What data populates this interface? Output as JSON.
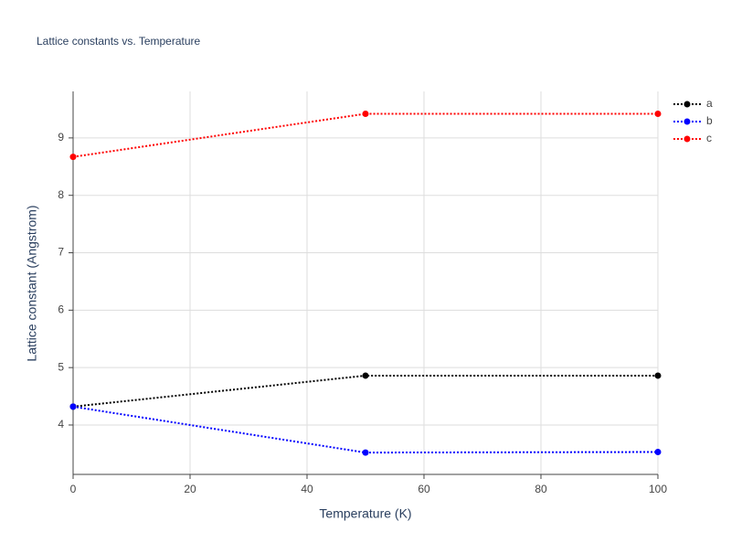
{
  "chart_data": {
    "type": "line",
    "title": "Lattice constants vs. Temperature",
    "x_label": "Temperature (K)",
    "y_label": "Lattice constant (Angstrom)",
    "x": [
      0,
      50,
      100
    ],
    "series": [
      {
        "name": "a",
        "color": "#000000",
        "values": [
          4.32,
          4.86,
          4.86
        ]
      },
      {
        "name": "b",
        "color": "#0000ff",
        "values": [
          4.32,
          3.52,
          3.53
        ]
      },
      {
        "name": "c",
        "color": "#ff0000",
        "values": [
          8.67,
          9.42,
          9.42
        ]
      }
    ],
    "xlim": [
      0,
      100
    ],
    "xticks": [
      0,
      20,
      40,
      60,
      80,
      100
    ],
    "ylim": [
      3.14,
      9.81
    ],
    "yticks": [
      4,
      5,
      6,
      7,
      8,
      9
    ],
    "grid": true,
    "legend": "top-right"
  }
}
